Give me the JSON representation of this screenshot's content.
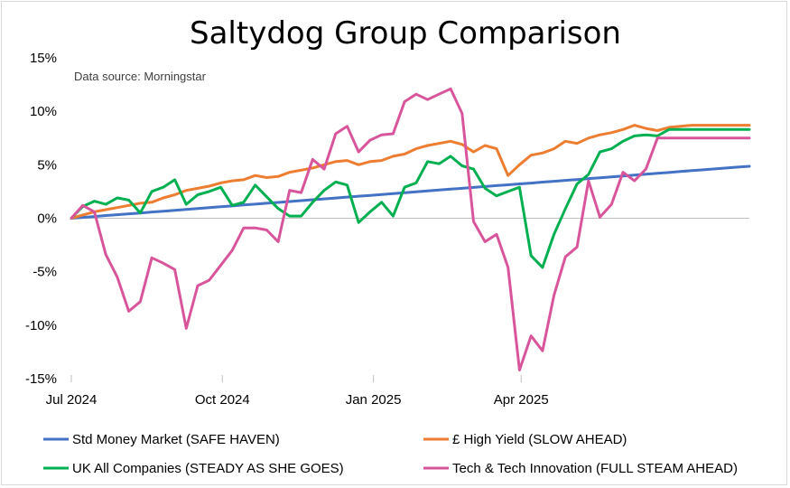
{
  "chart_data": {
    "type": "line",
    "title": "Saltydog Group Comparison",
    "annotation": "Data source: Morningstar",
    "xlabel": "",
    "ylabel": "",
    "x_tick_labels": [
      {
        "date": "2024-07-01",
        "label": "Jul 2024"
      },
      {
        "date": "2024-10-01",
        "label": "Oct 2024"
      },
      {
        "date": "2025-01-01",
        "label": "Jan 2025"
      },
      {
        "date": "2025-04-01",
        "label": "Apr 2025"
      }
    ],
    "xlim": [
      "2024-07-01",
      "2025-08-18"
    ],
    "ylim": [
      -15,
      15
    ],
    "y_tick_values": [
      15,
      10,
      5,
      0,
      -5,
      -10,
      -15
    ],
    "y_tick_labels": [
      "15%",
      "10%",
      "5%",
      "0%",
      "-5%",
      "-10%",
      "-15%"
    ],
    "grid": false,
    "legend_position": "bottom",
    "x": [
      "2024-07-01",
      "2024-07-08",
      "2024-07-15",
      "2024-07-22",
      "2024-07-29",
      "2024-08-05",
      "2024-08-12",
      "2024-08-19",
      "2024-08-26",
      "2024-09-02",
      "2024-09-09",
      "2024-09-16",
      "2024-09-23",
      "2024-09-30",
      "2024-10-07",
      "2024-10-14",
      "2024-10-21",
      "2024-10-28",
      "2024-11-04",
      "2024-11-11",
      "2024-11-18",
      "2024-11-25",
      "2024-12-02",
      "2024-12-09",
      "2024-12-16",
      "2024-12-23",
      "2024-12-30",
      "2025-01-06",
      "2025-01-13",
      "2025-01-20",
      "2025-01-27",
      "2025-02-03",
      "2025-02-10",
      "2025-02-17",
      "2025-02-24",
      "2025-03-03",
      "2025-03-10",
      "2025-03-17",
      "2025-03-24",
      "2025-03-31",
      "2025-04-07",
      "2025-04-14",
      "2025-04-21",
      "2025-04-28",
      "2025-05-05",
      "2025-05-12",
      "2025-05-19",
      "2025-05-26",
      "2025-06-02",
      "2025-06-09",
      "2025-06-16",
      "2025-06-23",
      "2025-06-30",
      "2025-07-07",
      "2025-07-14",
      "2025-07-21",
      "2025-07-28",
      "2025-08-04",
      "2025-08-11",
      "2025-08-18"
    ],
    "series": [
      {
        "name": "Std Money Market (SAFE HAVEN)",
        "color": "#4472c4",
        "values": [
          0.0,
          0.08,
          0.16,
          0.25,
          0.33,
          0.41,
          0.49,
          0.58,
          0.66,
          0.74,
          0.82,
          0.91,
          0.99,
          1.07,
          1.15,
          1.24,
          1.32,
          1.4,
          1.48,
          1.56,
          1.65,
          1.73,
          1.81,
          1.89,
          1.98,
          2.06,
          2.14,
          2.22,
          2.31,
          2.39,
          2.47,
          2.55,
          2.64,
          2.72,
          2.8,
          2.88,
          2.97,
          3.05,
          3.13,
          3.21,
          3.29,
          3.38,
          3.46,
          3.54,
          3.62,
          3.71,
          3.79,
          3.87,
          3.95,
          4.04,
          4.12,
          4.2,
          4.28,
          4.37,
          4.45,
          4.53,
          4.61,
          4.7,
          4.78,
          4.86
        ]
      },
      {
        "name": "£ High Yield (SLOW AHEAD)",
        "color": "#ed7d31",
        "values": [
          0.0,
          0.3,
          0.6,
          0.8,
          1.0,
          1.2,
          1.4,
          1.5,
          1.9,
          2.2,
          2.6,
          2.8,
          3.0,
          3.3,
          3.5,
          3.6,
          4.0,
          3.8,
          3.9,
          4.3,
          4.5,
          4.7,
          5.0,
          5.3,
          5.4,
          5.0,
          5.3,
          5.4,
          5.8,
          6.0,
          6.5,
          6.8,
          7.0,
          7.2,
          6.9,
          6.2,
          6.8,
          6.5,
          4.0,
          5.0,
          5.9,
          6.1,
          6.5,
          7.2,
          7.0,
          7.5,
          7.8,
          8.0,
          8.3,
          8.7,
          8.4,
          8.2,
          8.5,
          8.6,
          8.7,
          8.7,
          8.7,
          8.7,
          8.7,
          8.7
        ]
      },
      {
        "name": "UK All Companies (STEADY AS SHE GOES)",
        "color": "#00b050",
        "values": [
          0.0,
          1.1,
          1.6,
          1.3,
          1.9,
          1.7,
          0.5,
          2.5,
          2.9,
          3.6,
          1.3,
          2.2,
          2.5,
          2.9,
          1.2,
          1.5,
          3.1,
          2.0,
          0.9,
          0.2,
          0.2,
          1.5,
          2.6,
          3.4,
          3.1,
          -0.4,
          0.6,
          1.5,
          0.2,
          2.9,
          3.3,
          5.3,
          5.1,
          5.8,
          4.9,
          4.6,
          2.8,
          2.1,
          2.5,
          2.9,
          -3.5,
          -4.6,
          -1.5,
          0.9,
          3.2,
          4.1,
          6.2,
          6.5,
          7.2,
          7.7,
          7.8,
          7.7,
          8.3,
          8.3,
          8.3,
          8.3,
          8.3,
          8.3,
          8.3,
          8.3
        ]
      },
      {
        "name": "Tech & Tech Innovation (FULL STEAM AHEAD)",
        "color": "#d9559b",
        "values": [
          0.0,
          1.2,
          0.6,
          -3.4,
          -5.5,
          -8.7,
          -7.8,
          -3.7,
          -4.2,
          -4.8,
          -10.3,
          -6.3,
          -5.8,
          -4.4,
          -3.0,
          -0.9,
          -0.9,
          -1.1,
          -2.2,
          2.6,
          2.4,
          5.5,
          4.6,
          7.9,
          8.6,
          6.2,
          7.3,
          7.8,
          7.9,
          10.9,
          11.6,
          11.1,
          11.6,
          12.1,
          9.8,
          -0.3,
          -2.2,
          -1.5,
          -4.6,
          -14.2,
          -11.0,
          -12.4,
          -7.2,
          -3.6,
          -2.7,
          3.5,
          0.1,
          1.3,
          4.3,
          3.5,
          4.6,
          7.5,
          7.5,
          7.5,
          7.5,
          7.5,
          7.5,
          7.5,
          7.5,
          7.5
        ]
      }
    ]
  }
}
